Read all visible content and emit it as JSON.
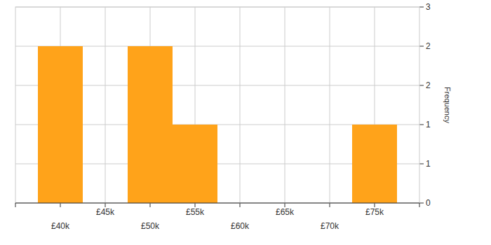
{
  "chart_data": {
    "type": "histogram",
    "bins": [
      37500,
      42500,
      47500,
      52500,
      57500,
      62500,
      67500,
      72500,
      77500
    ],
    "values": [
      2,
      0,
      2,
      1,
      0,
      0,
      0,
      1
    ],
    "color": "#ffa31a",
    "xlim": [
      35000,
      80000
    ],
    "xticks": [
      {
        "value": 40000,
        "label": "£40k"
      },
      {
        "value": 45000,
        "label": "£45k"
      },
      {
        "value": 50000,
        "label": "£50k"
      },
      {
        "value": 55000,
        "label": "£55k"
      },
      {
        "value": 60000,
        "label": "£60k"
      },
      {
        "value": 65000,
        "label": "£65k"
      },
      {
        "value": 70000,
        "label": "£70k"
      },
      {
        "value": 75000,
        "label": "£75k"
      }
    ],
    "ylim": [
      0,
      2.5
    ],
    "yticks": [
      0,
      {
        "value": 0.5,
        "label": "1"
      },
      1,
      {
        "value": 1.5,
        "label": "2"
      },
      2,
      {
        "value": 2.5,
        "label": "3"
      }
    ],
    "y_label": "Frequency",
    "grid": true
  }
}
